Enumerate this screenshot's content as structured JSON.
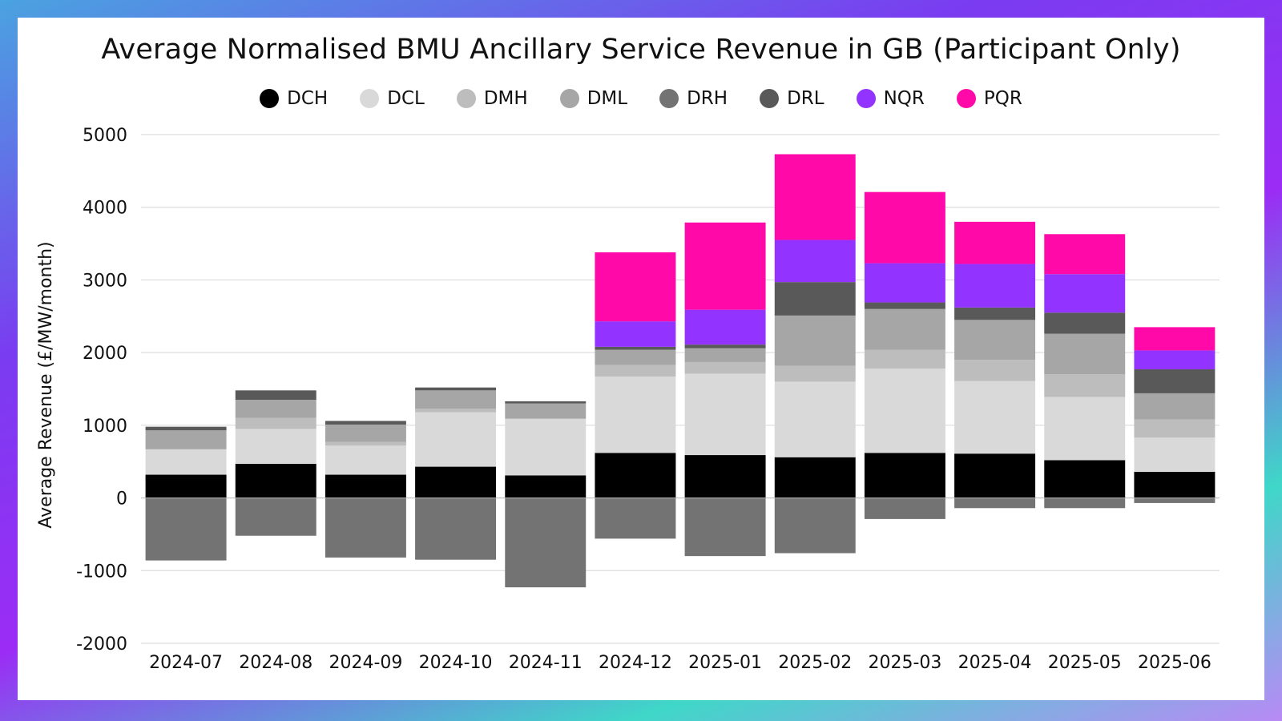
{
  "chart_data": {
    "type": "bar",
    "stacked": true,
    "title": "Average Normalised BMU Ancillary Service Revenue in GB (Participant Only)",
    "xlabel": "",
    "ylabel": "Average Revenue (£/MW/month)",
    "ylim": [
      -2000,
      5000
    ],
    "yticks": [
      5000,
      4000,
      3000,
      2000,
      1000,
      0,
      -1000,
      -2000
    ],
    "grid": true,
    "legend_position": "top",
    "categories": [
      "2024-07",
      "2024-08",
      "2024-09",
      "2024-10",
      "2024-11",
      "2024-12",
      "2025-01",
      "2025-02",
      "2025-03",
      "2025-04",
      "2025-05",
      "2025-06"
    ],
    "series": [
      {
        "name": "DCH",
        "color": "#000000",
        "values": [
          320,
          470,
          320,
          430,
          310,
          620,
          590,
          560,
          620,
          610,
          520,
          360
        ]
      },
      {
        "name": "DCL",
        "color": "#d9d9d9",
        "values": [
          350,
          480,
          400,
          750,
          780,
          1050,
          1120,
          1040,
          1160,
          1000,
          870,
          470
        ]
      },
      {
        "name": "DMH",
        "color": "#bdbdbd",
        "values": [
          0,
          150,
          50,
          50,
          0,
          160,
          160,
          220,
          260,
          290,
          310,
          250
        ]
      },
      {
        "name": "DML",
        "color": "#a6a6a6",
        "values": [
          260,
          250,
          240,
          250,
          210,
          210,
          190,
          690,
          560,
          550,
          560,
          360
        ]
      },
      {
        "name": "DRH",
        "color": "#737373",
        "values": [
          -860,
          -520,
          -820,
          -850,
          -1230,
          -560,
          -800,
          -760,
          -290,
          -140,
          -140,
          -70
        ]
      },
      {
        "name": "DRL",
        "color": "#595959",
        "values": [
          50,
          130,
          50,
          40,
          30,
          40,
          50,
          460,
          90,
          170,
          290,
          330
        ]
      },
      {
        "name": "NQR",
        "color": "#9333ff",
        "values": [
          0,
          0,
          0,
          0,
          0,
          350,
          480,
          580,
          540,
          600,
          530,
          260
        ]
      },
      {
        "name": "PQR",
        "color": "#ff0aa8",
        "values": [
          0,
          0,
          0,
          0,
          0,
          950,
          1200,
          1180,
          980,
          580,
          550,
          320
        ]
      }
    ]
  }
}
